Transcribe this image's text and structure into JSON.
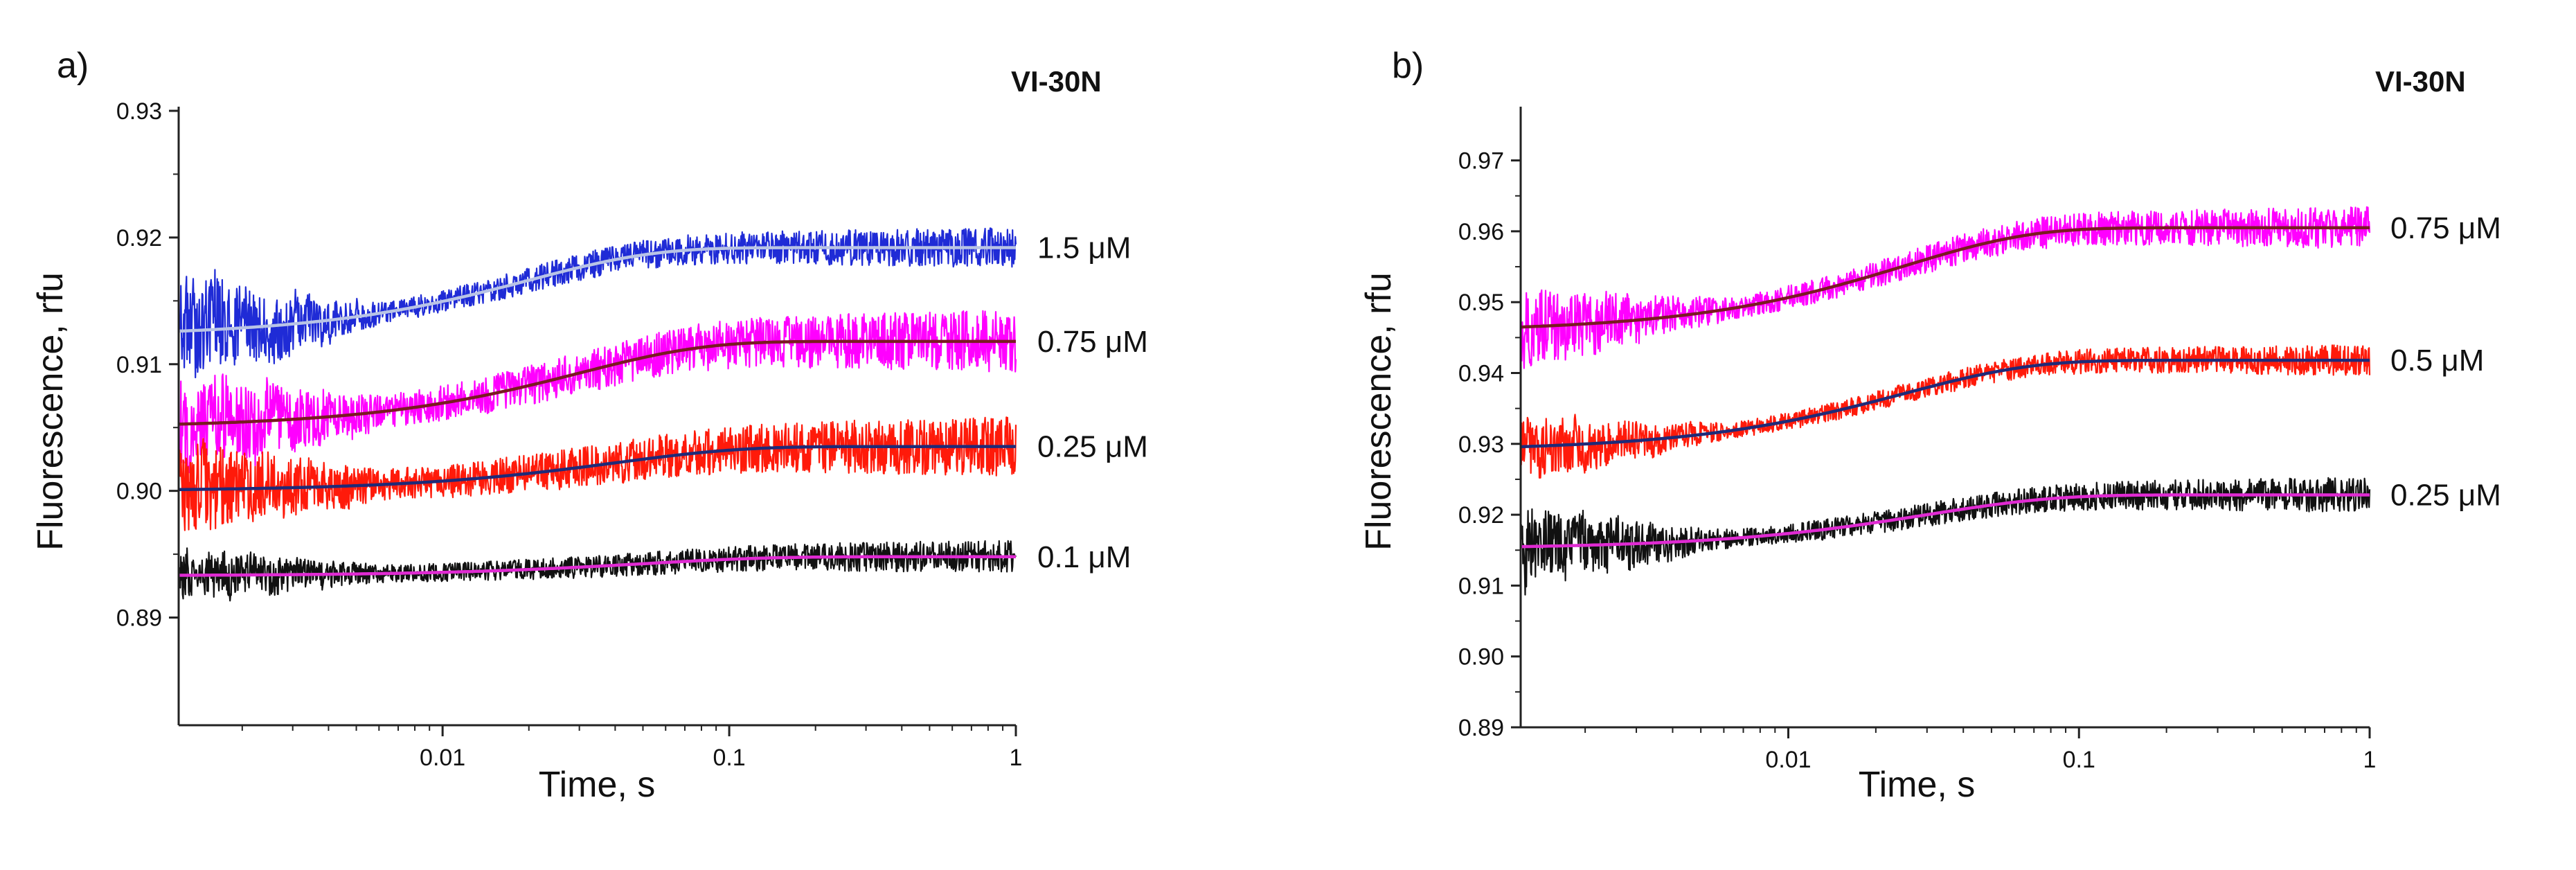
{
  "chart_data": [
    {
      "panel_label": "a)",
      "dataset_label": "VI-30N",
      "type": "line",
      "xscale": "log",
      "xlabel": "Time, s",
      "ylabel": "Fluorescence, rfu",
      "xlim": [
        0.0012,
        1
      ],
      "ylim": [
        0.8815,
        0.93
      ],
      "x_ticks": [
        0.01,
        0.1,
        1
      ],
      "x_tick_labels": [
        "0.01",
        "0.1",
        "1"
      ],
      "y_ticks": [
        0.89,
        0.9,
        0.91,
        0.92,
        0.93
      ],
      "y_tick_labels": [
        "0.89",
        "0.90",
        "0.91",
        "0.92",
        "0.93"
      ],
      "series": [
        {
          "name": "1.5 μM",
          "label": "1.5 μM",
          "raw_color": "#1f2bd6",
          "fit_color": "#b8c3e6",
          "fit": {
            "y0": 0.9122,
            "y1": 0.9192,
            "tau": 0.02
          },
          "noise": 0.0016,
          "early_noise": 0.0035
        },
        {
          "name": "0.75 μM",
          "label": "0.75 μM",
          "raw_color": "#ff00ff",
          "fit_color": "#7a1a22",
          "fit": {
            "y0": 0.905,
            "y1": 0.9118,
            "tau": 0.03
          },
          "noise": 0.0025,
          "early_noise": 0.003
        },
        {
          "name": "0.25 μM",
          "label": "0.25 μM",
          "raw_color": "#ff1a0a",
          "fit_color": "#1f2a78",
          "fit": {
            "y0": 0.9,
            "y1": 0.9035,
            "tau": 0.04
          },
          "noise": 0.0024,
          "early_noise": 0.0028
        },
        {
          "name": "0.1 μM",
          "label": "0.1 μM",
          "raw_color": "#111111",
          "fit_color": "#e02ad2",
          "fit": {
            "y0": 0.8933,
            "y1": 0.8948,
            "tau": 0.05
          },
          "noise": 0.0013,
          "early_noise": 0.0016
        }
      ]
    },
    {
      "panel_label": "b)",
      "dataset_label": "VI-30N",
      "type": "line",
      "xscale": "log",
      "xlabel": "Time, s",
      "ylabel": "Fluorescence, rfu",
      "xlim": [
        0.0012,
        1
      ],
      "ylim": [
        0.89,
        0.977
      ],
      "x_ticks": [
        0.01,
        0.1,
        1
      ],
      "x_tick_labels": [
        "0.01",
        "0.1",
        "1"
      ],
      "y_ticks": [
        0.89,
        0.9,
        0.91,
        0.92,
        0.93,
        0.94,
        0.95,
        0.96,
        0.97
      ],
      "y_tick_labels": [
        "0.89",
        "0.90",
        "0.91",
        "0.92",
        "0.93",
        "0.94",
        "0.95",
        "0.96",
        "0.97"
      ],
      "series": [
        {
          "name": "0.75 μM",
          "label": "0.75 μM",
          "raw_color": "#ff00ff",
          "fit_color": "#7a1a22",
          "fit": {
            "y0": 0.9458,
            "y1": 0.9605,
            "tau": 0.025
          },
          "noise": 0.003,
          "early_noise": 0.0045
        },
        {
          "name": "0.5 μM",
          "label": "0.5 μM",
          "raw_color": "#ff1a0a",
          "fit_color": "#1f2a78",
          "fit": {
            "y0": 0.929,
            "y1": 0.9418,
            "tau": 0.025
          },
          "noise": 0.0022,
          "early_noise": 0.0035
        },
        {
          "name": "0.25 μM",
          "label": "0.25 μM",
          "raw_color": "#111111",
          "fit_color": "#e02ad2",
          "fit": {
            "y0": 0.9152,
            "y1": 0.9228,
            "tau": 0.03
          },
          "noise": 0.0025,
          "early_noise": 0.0045
        }
      ]
    }
  ]
}
